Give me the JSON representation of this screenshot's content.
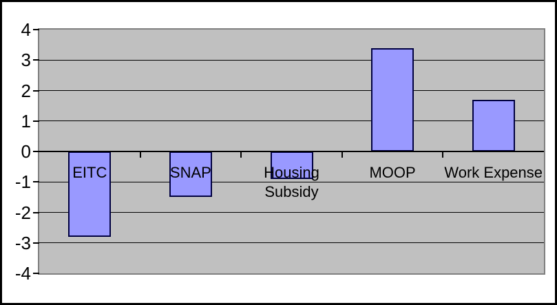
{
  "chart_data": {
    "type": "bar",
    "title": "",
    "xlabel": "",
    "ylabel": "",
    "categories": [
      "EITC",
      "SNAP",
      "Housing Subsidy",
      "MOOP",
      "Work Expense"
    ],
    "category_display_lines": [
      [
        "EITC"
      ],
      [
        "SNAP"
      ],
      [
        "Housing",
        "Subsidy"
      ],
      [
        "MOOP"
      ],
      [
        "Work Expense"
      ]
    ],
    "values": [
      -2.8,
      -1.5,
      -0.9,
      3.4,
      1.7
    ],
    "ylim": [
      -4,
      4
    ],
    "ytick_interval": 1,
    "ytick_labels": [
      "4",
      "3",
      "2",
      "1",
      "0",
      "-1",
      "-2",
      "-3",
      "-4"
    ],
    "grid": true,
    "legend": false,
    "colors": {
      "bar_fill": "#9999FF",
      "bar_border": "#000040",
      "plot_background": "#C0C0C0",
      "plot_border": "#7F7F7F",
      "gridline": "#000000",
      "axis_line": "#000000",
      "tick": "#000000",
      "text": "#000000",
      "page_background": "#FFFFFF",
      "outer_frame": "#000000"
    }
  }
}
